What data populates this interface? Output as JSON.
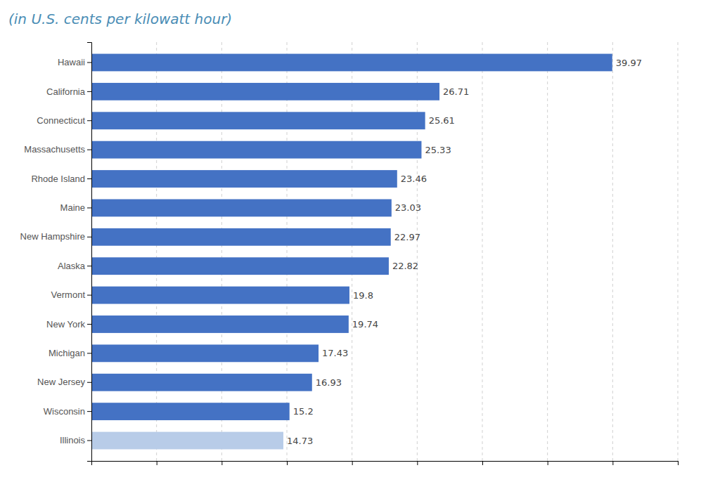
{
  "chart_data": {
    "type": "bar",
    "orientation": "horizontal",
    "title": "(in U.S. cents per kilowatt hour)",
    "categories": [
      "Hawaii",
      "California",
      "Connecticut",
      "Massachusetts",
      "Rhode Island",
      "Maine",
      "New Hampshire",
      "Alaska",
      "Vermont",
      "New York",
      "Michigan",
      "New Jersey",
      "Wisconsin",
      "Illinois"
    ],
    "values": [
      39.97,
      26.71,
      25.61,
      25.33,
      23.46,
      23.03,
      22.97,
      22.82,
      19.8,
      19.74,
      17.43,
      16.93,
      15.2,
      14.73
    ],
    "colors": [
      "#4472c4",
      "#4472c4",
      "#4472c4",
      "#4472c4",
      "#4472c4",
      "#4472c4",
      "#4472c4",
      "#4472c4",
      "#4472c4",
      "#4472c4",
      "#4472c4",
      "#4472c4",
      "#4472c4",
      "#b8cce8"
    ],
    "xlim": [
      0,
      45
    ],
    "xticks": [
      5,
      10,
      15,
      20,
      25,
      30,
      35,
      40,
      45
    ],
    "grid": true,
    "data_labels": true,
    "tick_labels": "y"
  }
}
